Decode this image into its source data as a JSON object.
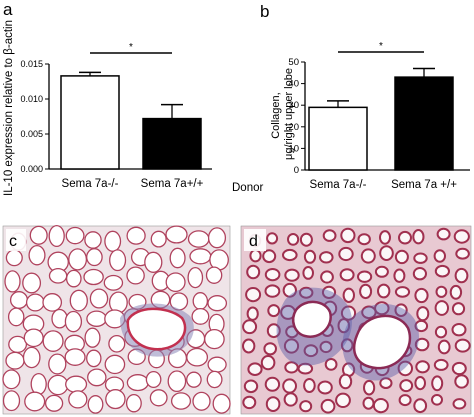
{
  "panels": {
    "a": {
      "letter": "a"
    },
    "b": {
      "letter": "b"
    },
    "c": {
      "letter": "c"
    },
    "d": {
      "letter": "d"
    }
  },
  "donor_label": "Donor",
  "chart_data": [
    {
      "panel": "a",
      "type": "bar",
      "categories": [
        "Sema 7a-/-",
        "Sema 7a+/+"
      ],
      "values": [
        0.0133,
        0.0072
      ],
      "error": [
        0.0005,
        0.002
      ],
      "bar_colors": [
        "#ffffff",
        "#000000"
      ],
      "ylabel": "IL-10 expression relative to β-actin",
      "ylim": [
        0,
        0.015
      ],
      "yticks": [
        "0.000",
        "0.005",
        "0.010",
        "0.015"
      ],
      "ytick_values": [
        0,
        0.005,
        0.01,
        0.015
      ],
      "significance": "*"
    },
    {
      "panel": "b",
      "type": "bar",
      "categories": [
        "Sema 7a-/-",
        "Sema 7a +/+"
      ],
      "values": [
        29,
        43
      ],
      "error": [
        3,
        4
      ],
      "bar_colors": [
        "#ffffff",
        "#000000"
      ],
      "ylabel_lines": [
        "Collagen,",
        "μg/right upper lobe"
      ],
      "ylim": [
        0,
        50
      ],
      "yticks": [
        "0",
        "10",
        "20",
        "30",
        "40",
        "50"
      ],
      "ytick_values": [
        0,
        10,
        20,
        30,
        40,
        50
      ],
      "significance": "*"
    }
  ]
}
